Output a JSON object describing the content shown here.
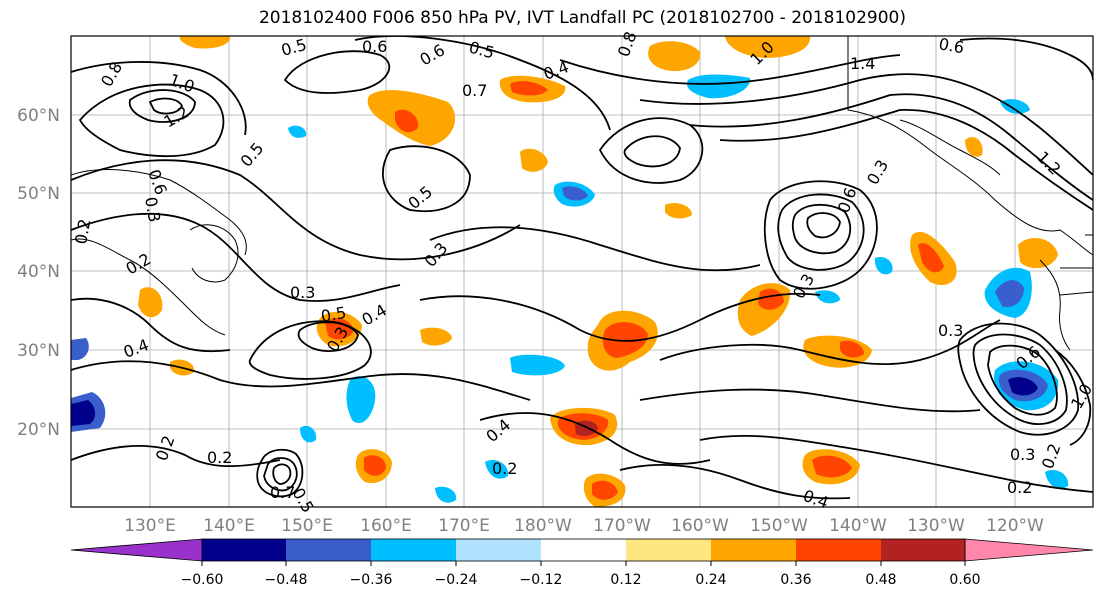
{
  "title": "2018102400 F006 850 hPa PV, IVT Landfall PC (2018102700 - 2018102900)",
  "map": {
    "lat_labels": [
      "60°N",
      "50°N",
      "40°N",
      "30°N",
      "20°N"
    ],
    "lon_labels": [
      "130°E",
      "140°E",
      "150°E",
      "160°E",
      "170°E",
      "180°W",
      "170°W",
      "160°W",
      "150°W",
      "140°W",
      "130°W",
      "120°W"
    ],
    "label_color": "#808080",
    "contour_labels": [
      "0.5",
      "0.6",
      "0.5",
      "0.6",
      "0.8",
      "1.0",
      "1.2",
      "0.6",
      "0.3",
      "0.2",
      "0.2",
      "0.4",
      "0.7",
      "0.4",
      "0.5",
      "0.3",
      "0.3",
      "0.5",
      "0.4",
      "0.3",
      "0.2",
      "0.2",
      "0.8",
      "1.0",
      "1.4",
      "1.2",
      "0.3",
      "0.6",
      "0.3",
      "0.4",
      "0.2",
      "0.3",
      "0.2",
      "0.3",
      "0.6",
      "1.0",
      "0.7",
      "0.5",
      "0.6",
      "0.5",
      "0.2",
      "0.4"
    ]
  },
  "colorbar": {
    "colors": [
      "#9932cc",
      "#00008b",
      "#3a5fcd",
      "#00bfff",
      "#b0e2ff",
      "#ffffff",
      "#ffe680",
      "#ffa500",
      "#ff4500",
      "#b22222",
      "#ff88aa"
    ],
    "tick_labels": [
      "−0.60",
      "−0.48",
      "−0.36",
      "−0.24",
      "−0.12",
      "0.12",
      "0.24",
      "0.36",
      "0.48",
      "0.60"
    ]
  }
}
